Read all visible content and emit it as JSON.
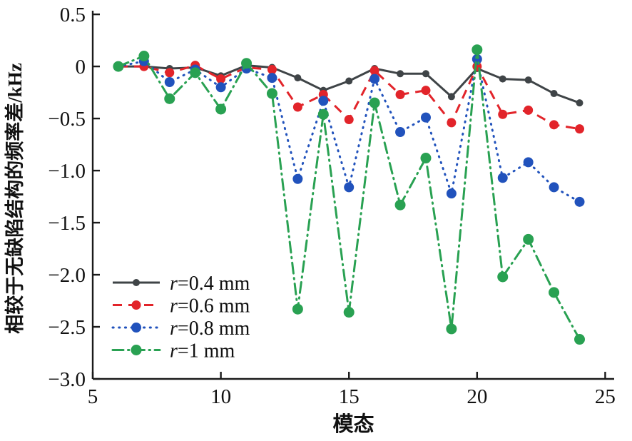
{
  "figure": {
    "background_color": "#ffffff",
    "axis_color": "#1a1a1a"
  },
  "chart_data": {
    "type": "line",
    "title": "",
    "xlabel": "模态",
    "ylabel": "相较于无缺陷结构的频率差/kHz",
    "xlim": [
      5,
      25.35
    ],
    "ylim": [
      -3.0,
      0.535
    ],
    "x_ticks": [
      5,
      10,
      15,
      20,
      25
    ],
    "x_tick_labels": [
      "5",
      "10",
      "15",
      "20",
      "25"
    ],
    "y_ticks": [
      0.5,
      0,
      -0.5,
      -1.0,
      -1.5,
      -2.0,
      -2.5,
      -3.0
    ],
    "y_tick_labels": [
      "0.5",
      "0",
      "−0.5",
      "−1.0",
      "−1.5",
      "−2.0",
      "−2.5",
      "−3.0"
    ],
    "grid": false,
    "legend_position": "inside-lower-left",
    "x": [
      6,
      7,
      8,
      9,
      10,
      11,
      12,
      13,
      14,
      15,
      16,
      17,
      18,
      19,
      20,
      21,
      22,
      23,
      24
    ],
    "series": [
      {
        "name": "r=0.4 mm",
        "color": "#3f4447",
        "line_style": "solid",
        "marker": "circle",
        "marker_radius": 5,
        "values": [
          0.0,
          0.0,
          -0.02,
          -0.01,
          -0.09,
          0.01,
          -0.01,
          -0.11,
          -0.23,
          -0.14,
          -0.02,
          -0.07,
          -0.07,
          -0.29,
          -0.02,
          -0.12,
          -0.13,
          -0.26,
          -0.35
        ]
      },
      {
        "name": "r=0.6 mm",
        "color": "#e2242a",
        "line_style": "dashed",
        "marker": "circle",
        "marker_radius": 6.5,
        "values": [
          0.0,
          0.0,
          -0.06,
          0.01,
          -0.12,
          -0.01,
          -0.03,
          -0.39,
          -0.27,
          -0.51,
          -0.04,
          -0.27,
          -0.23,
          -0.54,
          0.0,
          -0.46,
          -0.42,
          -0.56,
          -0.6
        ]
      },
      {
        "name": "r=0.8 mm",
        "color": "#2152bc",
        "line_style": "dotted",
        "marker": "circle",
        "marker_radius": 7,
        "values": [
          0.0,
          0.05,
          -0.15,
          -0.03,
          -0.2,
          -0.02,
          -0.11,
          -1.08,
          -0.33,
          -1.16,
          -0.12,
          -0.63,
          -0.49,
          -1.22,
          0.07,
          -1.07,
          -0.92,
          -1.16,
          -1.3
        ]
      },
      {
        "name": "r=1 mm",
        "color": "#29a152",
        "line_style": "dash-dot",
        "marker": "circle",
        "marker_radius": 7.5,
        "values": [
          0.0,
          0.1,
          -0.31,
          -0.06,
          -0.41,
          0.03,
          -0.26,
          -2.33,
          -0.46,
          -2.36,
          -0.35,
          -1.33,
          -0.88,
          -2.52,
          0.16,
          -2.02,
          -1.66,
          -2.17,
          -2.62
        ]
      }
    ]
  }
}
